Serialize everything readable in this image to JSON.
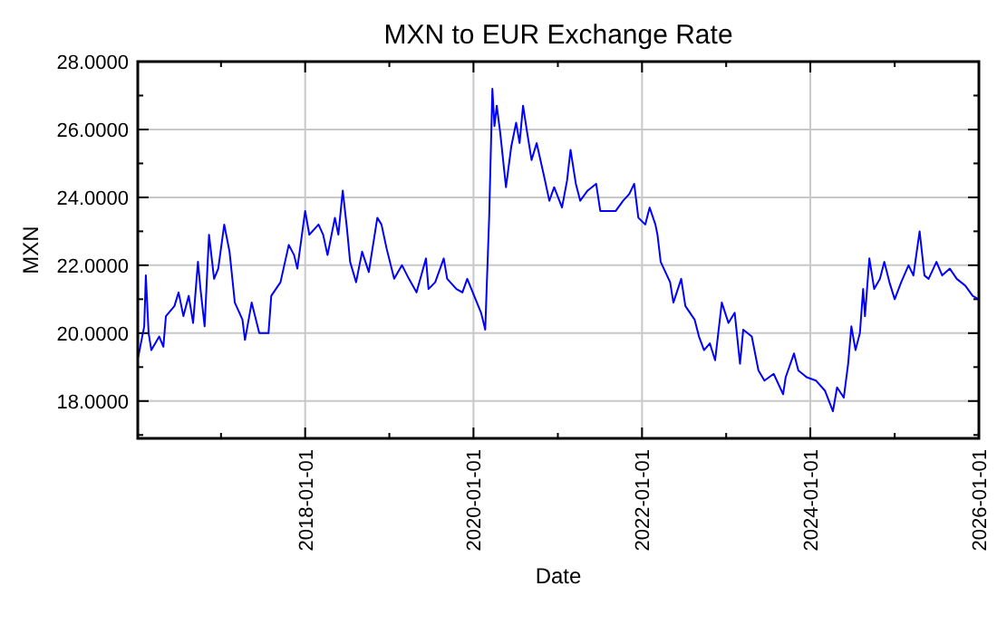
{
  "chart_data": {
    "type": "line",
    "title": "MXN to EUR Exchange Rate",
    "xlabel": "Date",
    "ylabel": "MXN",
    "xlim": [
      "2016-01-06",
      "2026-01-01"
    ],
    "xticks": [
      {
        "value": "2017-01-01",
        "label": null
      },
      {
        "value": "2018-01-01",
        "label": "2018-01-01"
      },
      {
        "value": "2019-01-01",
        "label": null
      },
      {
        "value": "2020-01-01",
        "label": "2020-01-01"
      },
      {
        "value": "2021-01-01",
        "label": null
      },
      {
        "value": "2022-01-01",
        "label": "2022-01-01"
      },
      {
        "value": "2023-01-01",
        "label": null
      },
      {
        "value": "2024-01-01",
        "label": "2024-01-01"
      },
      {
        "value": "2025-01-01",
        "label": null
      },
      {
        "value": "2026-01-01",
        "label": "2026-01-01"
      }
    ],
    "ylim": [
      16.9,
      28
    ],
    "yticks": [
      {
        "value": 17,
        "label": null
      },
      {
        "value": 18,
        "label": "18.0000"
      },
      {
        "value": 19,
        "label": null
      },
      {
        "value": 20,
        "label": "20.0000"
      },
      {
        "value": 21,
        "label": null
      },
      {
        "value": 22,
        "label": "22.0000"
      },
      {
        "value": 23,
        "label": null
      },
      {
        "value": 24,
        "label": "24.0000"
      },
      {
        "value": 25,
        "label": null
      },
      {
        "value": 26,
        "label": "26.0000"
      },
      {
        "value": 27,
        "label": null
      },
      {
        "value": 28,
        "label": "28.0000"
      }
    ],
    "grid": true,
    "line_style": "solid",
    "marker": "none",
    "x": [
      "2016-01-08",
      "2016-02-03",
      "2016-02-10",
      "2016-02-22",
      "2016-03-05",
      "2016-04-08",
      "2016-04-26",
      "2016-05-07",
      "2016-06-13",
      "2016-07-01",
      "2016-07-22",
      "2016-08-14",
      "2016-09-02",
      "2016-09-23",
      "2016-10-04",
      "2016-10-22",
      "2016-11-10",
      "2016-12-02",
      "2016-12-20",
      "2017-01-15",
      "2017-02-07",
      "2017-03-02",
      "2017-04-04",
      "2017-04-15",
      "2017-05-14",
      "2017-06-16",
      "2017-07-26",
      "2017-08-07",
      "2017-09-16",
      "2017-10-22",
      "2017-11-14",
      "2017-11-28",
      "2018-01-01",
      "2018-01-19",
      "2018-02-28",
      "2018-03-20",
      "2018-04-08",
      "2018-05-10",
      "2018-05-25",
      "2018-06-13",
      "2018-07-01",
      "2018-07-15",
      "2018-08-10",
      "2018-09-05",
      "2018-10-04",
      "2018-11-10",
      "2018-11-28",
      "2018-12-20",
      "2019-01-22",
      "2019-02-25",
      "2019-03-27",
      "2019-04-29",
      "2019-06-09",
      "2019-06-20",
      "2019-07-19",
      "2019-08-25",
      "2019-09-09",
      "2019-10-19",
      "2019-11-14",
      "2019-12-05",
      "2020-01-04",
      "2020-02-03",
      "2020-02-21",
      "2020-03-09",
      "2020-03-23",
      "2020-04-01",
      "2020-04-11",
      "2020-04-26",
      "2020-05-21",
      "2020-06-13",
      "2020-07-04",
      "2020-07-19",
      "2020-08-03",
      "2020-08-21",
      "2020-09-09",
      "2020-10-01",
      "2020-11-03",
      "2020-11-25",
      "2020-12-16",
      "2021-01-19",
      "2021-02-10",
      "2021-02-25",
      "2021-03-20",
      "2021-04-08",
      "2021-05-10",
      "2021-06-16",
      "2021-07-04",
      "2021-08-14",
      "2021-09-09",
      "2021-10-11",
      "2021-11-07",
      "2021-11-28",
      "2021-12-16",
      "2022-01-15",
      "2022-02-03",
      "2022-02-28",
      "2022-03-09",
      "2022-03-23",
      "2022-05-03",
      "2022-05-17",
      "2022-06-20",
      "2022-07-08",
      "2022-08-17",
      "2022-09-05",
      "2022-09-27",
      "2022-10-22",
      "2022-11-14",
      "2022-12-13",
      "2023-01-11",
      "2023-02-07",
      "2023-03-02",
      "2023-03-16",
      "2023-04-22",
      "2023-05-21",
      "2023-06-16",
      "2023-07-26",
      "2023-09-05",
      "2023-09-16",
      "2023-10-22",
      "2023-11-10",
      "2023-12-16",
      "2024-01-26",
      "2024-03-05",
      "2024-04-08",
      "2024-04-26",
      "2024-05-25",
      "2024-06-13",
      "2024-06-27",
      "2024-07-15",
      "2024-08-03",
      "2024-08-17",
      "2024-08-25",
      "2024-09-13",
      "2024-10-04",
      "2024-10-29",
      "2024-11-17",
      "2024-12-09",
      "2025-01-01",
      "2025-01-29",
      "2025-03-02",
      "2025-03-23",
      "2025-04-19",
      "2025-05-10",
      "2025-05-28",
      "2025-07-01",
      "2025-07-26",
      "2025-08-28",
      "2025-09-27",
      "2025-11-03",
      "2025-12-05",
      "2025-12-30"
    ],
    "series": [
      {
        "color": "#0000ff",
        "values": [
          19.3,
          20.2,
          21.7,
          20.0,
          19.5,
          19.9,
          19.6,
          20.5,
          20.8,
          21.2,
          20.5,
          21.1,
          20.3,
          22.1,
          21.3,
          20.2,
          22.9,
          21.6,
          21.9,
          23.2,
          22.4,
          20.9,
          20.4,
          19.8,
          20.9,
          20.0,
          20.0,
          21.1,
          21.5,
          22.6,
          22.3,
          21.9,
          23.6,
          22.9,
          23.2,
          22.9,
          22.3,
          23.4,
          22.9,
          24.2,
          23.1,
          22.1,
          21.5,
          22.4,
          21.8,
          23.4,
          23.2,
          22.5,
          21.6,
          22.0,
          21.6,
          21.2,
          22.2,
          21.3,
          21.5,
          22.2,
          21.6,
          21.3,
          21.2,
          21.6,
          21.1,
          20.6,
          20.1,
          23.4,
          27.2,
          26.1,
          26.7,
          25.9,
          24.3,
          25.5,
          26.2,
          25.6,
          26.7,
          25.9,
          25.1,
          25.6,
          24.6,
          23.9,
          24.3,
          23.7,
          24.5,
          25.4,
          24.4,
          23.9,
          24.2,
          24.4,
          23.6,
          23.6,
          23.6,
          23.9,
          24.1,
          24.4,
          23.4,
          23.2,
          23.7,
          23.2,
          22.9,
          22.1,
          21.5,
          20.9,
          21.6,
          20.8,
          20.4,
          19.9,
          19.5,
          19.7,
          19.2,
          20.9,
          20.3,
          20.6,
          19.1,
          20.1,
          19.9,
          18.9,
          18.6,
          18.8,
          18.2,
          18.7,
          19.4,
          18.9,
          18.7,
          18.6,
          18.3,
          17.7,
          18.4,
          18.1,
          19.1,
          20.2,
          19.5,
          20.0,
          21.3,
          20.5,
          22.2,
          21.3,
          21.6,
          22.1,
          21.5,
          21.0,
          21.5,
          22.0,
          21.7,
          23.0,
          21.7,
          21.6,
          22.1,
          21.7,
          21.9,
          21.6,
          21.4,
          21.1,
          21.0
        ]
      }
    ]
  }
}
